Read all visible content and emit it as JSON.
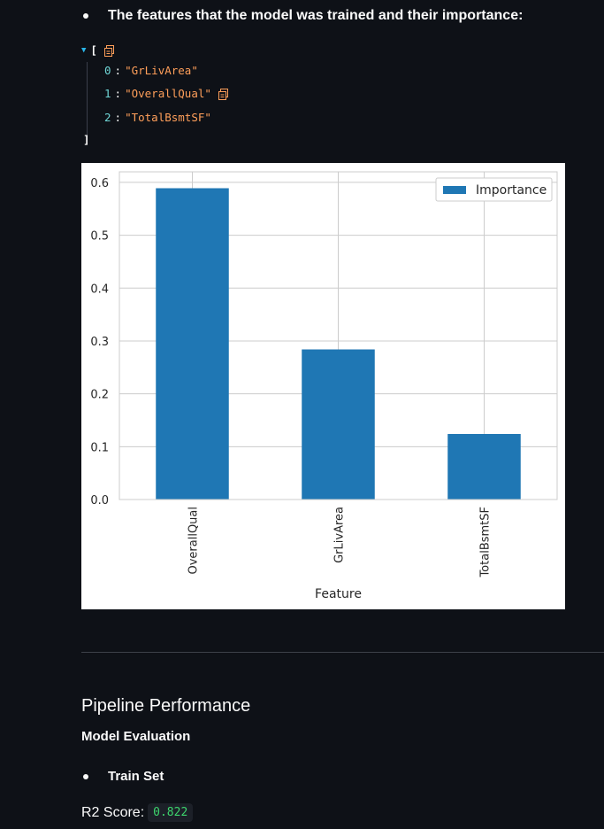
{
  "features_bullet": "The features that the model was trained and their importance:",
  "json_view": {
    "open_bracket": "[",
    "close_bracket": "]",
    "items": [
      {
        "index": "0",
        "value": "\"GrLivArea\""
      },
      {
        "index": "1",
        "value": "\"OverallQual\""
      },
      {
        "index": "2",
        "value": "\"TotalBsmtSF\""
      }
    ]
  },
  "chart_data": {
    "type": "bar",
    "categories": [
      "OverallQual",
      "GrLivArea",
      "TotalBsmtSF"
    ],
    "series": [
      {
        "name": "Importance",
        "values": [
          0.589,
          0.284,
          0.124
        ],
        "color": "#1f77b4"
      }
    ],
    "xlabel": "Feature",
    "ylabel": "",
    "ylim": [
      0,
      0.62
    ],
    "yticks": [
      "0.0",
      "0.1",
      "0.2",
      "0.3",
      "0.4",
      "0.5",
      "0.6"
    ],
    "grid": true,
    "legend": "top-right"
  },
  "section_title": "Pipeline Performance",
  "subsection_title": "Model Evaluation",
  "train_bullet": "Train Set",
  "r2_label": "R2 Score:",
  "r2_value": "0.822"
}
